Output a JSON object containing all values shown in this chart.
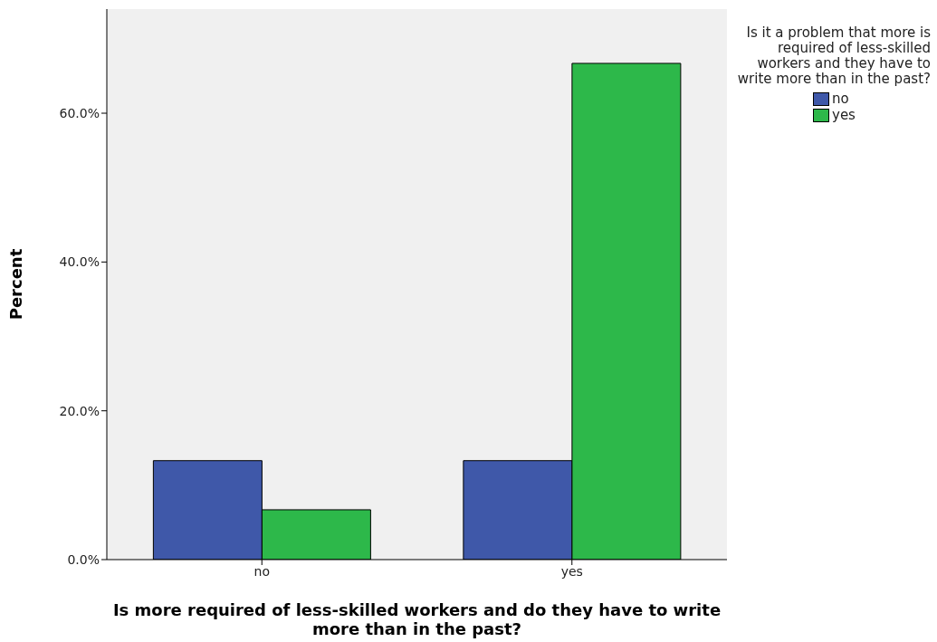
{
  "chart_data": {
    "type": "bar",
    "xlabel": "Is more required of less-skilled workers and do they have to write more than in the past?",
    "ylabel": "Percent",
    "legend_title": "Is it a problem that more is required of less-skilled workers and they have to write more than in the past?",
    "categories": [
      "no",
      "yes"
    ],
    "series": [
      {
        "name": "no",
        "color": "#3f58a9",
        "values": [
          13.3,
          13.3
        ]
      },
      {
        "name": "yes",
        "color": "#2db84a",
        "values": [
          6.7,
          66.7
        ]
      }
    ],
    "ylim": [
      0,
      74
    ],
    "yticks": [
      {
        "value": 0,
        "label": "0.0%"
      },
      {
        "value": 20,
        "label": "20.0%"
      },
      {
        "value": 40,
        "label": "40.0%"
      },
      {
        "value": 60,
        "label": "60.0%"
      }
    ],
    "grid": false,
    "legend": "top right"
  }
}
